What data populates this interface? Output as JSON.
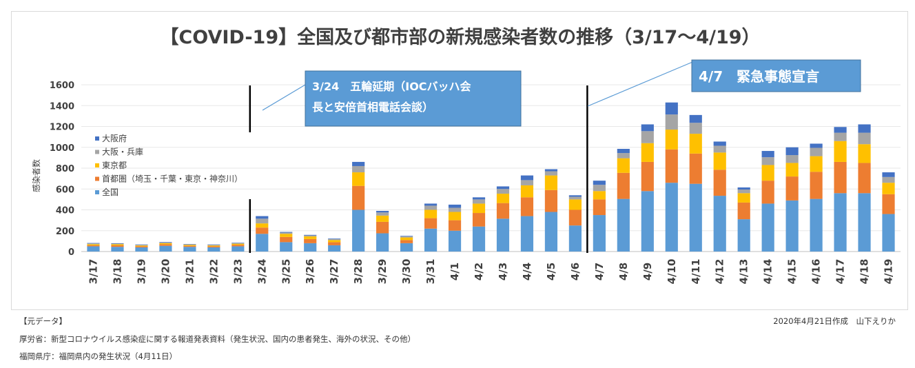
{
  "chart_data": {
    "type": "bar",
    "stacked": true,
    "title": "【COVID-19】全国及び都市部の新規感染者数の推移（3/17〜4/19）",
    "ylabel": "感染者数",
    "ylim": [
      0,
      1600
    ],
    "yticks": [
      "0",
      "200",
      "400",
      "600",
      "800",
      "1000",
      "1200",
      "1400",
      "1600"
    ],
    "categories": [
      "3/17",
      "3/18",
      "3/19",
      "3/20",
      "3/21",
      "3/22",
      "3/23",
      "3/24",
      "3/25",
      "3/26",
      "3/27",
      "3/28",
      "3/29",
      "3/30",
      "3/31",
      "4/1",
      "4/2",
      "4/3",
      "4/4",
      "4/5",
      "4/6",
      "4/7",
      "4/8",
      "4/9",
      "4/10",
      "4/11",
      "4/12",
      "4/13",
      "4/14",
      "4/15",
      "4/16",
      "4/17",
      "4/18",
      "4/19"
    ],
    "legend_position": "left",
    "series": [
      {
        "name": "全国",
        "color": "#5B9BD5",
        "values": [
          50,
          45,
          40,
          55,
          45,
          40,
          50,
          170,
          90,
          80,
          60,
          400,
          175,
          80,
          220,
          200,
          240,
          315,
          340,
          380,
          250,
          350,
          505,
          580,
          660,
          650,
          535,
          310,
          460,
          490,
          505,
          560,
          560,
          360
        ]
      },
      {
        "name": "首都圏（埼玉・千葉・東京・神奈川）",
        "color": "#ED7D31",
        "values": [
          10,
          15,
          10,
          15,
          10,
          10,
          15,
          60,
          50,
          40,
          30,
          230,
          110,
          30,
          100,
          100,
          130,
          150,
          180,
          210,
          150,
          150,
          250,
          280,
          320,
          290,
          250,
          160,
          220,
          230,
          260,
          300,
          290,
          190
        ]
      },
      {
        "name": "東京都",
        "color": "#FFC000",
        "values": [
          10,
          10,
          8,
          10,
          8,
          8,
          10,
          40,
          30,
          25,
          20,
          130,
          60,
          25,
          80,
          80,
          90,
          90,
          115,
          140,
          100,
          80,
          140,
          180,
          190,
          190,
          165,
          90,
          150,
          130,
          150,
          200,
          180,
          110
        ]
      },
      {
        "name": "大阪・兵庫",
        "color": "#A5A5A5",
        "values": [
          8,
          6,
          6,
          8,
          6,
          6,
          6,
          45,
          12,
          10,
          10,
          60,
          30,
          10,
          40,
          40,
          40,
          45,
          50,
          40,
          25,
          60,
          50,
          115,
          145,
          105,
          65,
          35,
          75,
          75,
          80,
          80,
          110,
          55
        ]
      },
      {
        "name": "大阪府",
        "color": "#4472C4",
        "values": [
          4,
          4,
          4,
          4,
          3,
          4,
          4,
          25,
          6,
          5,
          5,
          40,
          15,
          5,
          20,
          30,
          20,
          25,
          45,
          20,
          15,
          40,
          40,
          65,
          115,
          75,
          40,
          20,
          60,
          75,
          40,
          55,
          80,
          45
        ]
      }
    ],
    "annotations": [
      {
        "text_lines": [
          "3/24　五輪延期（IOCバッハ会",
          "長と安倍首相電話会談）"
        ],
        "at": "3/24",
        "box_color": "#5B9BD5"
      },
      {
        "text_lines": [
          "4/7　緊急事態宣言"
        ],
        "at": "4/7",
        "box_color": "#5B9BD5"
      }
    ]
  },
  "footer": {
    "source_label": "【元データ】",
    "source_line1": "厚労省：新型コロナウイルス感染症に関する報道発表資料（発生状況、国内の患者発生、海外の状況、その他）",
    "source_line2": "福岡県庁：福岡県内の発生状況（4月11日）",
    "credit": "2020年4月21日作成　山下えりか"
  }
}
